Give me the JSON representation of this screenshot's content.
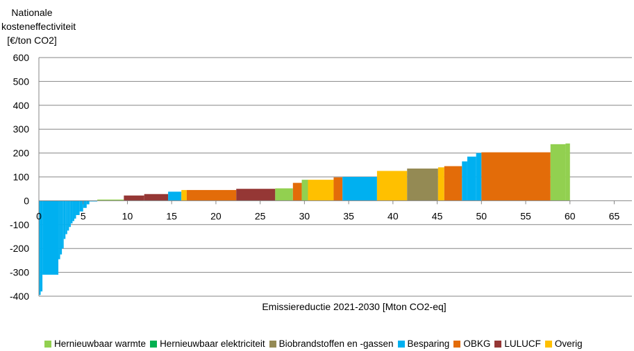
{
  "chart_data": {
    "type": "bar",
    "subtype": "marginal-abatement-cost-curve",
    "ylabel_lines": [
      "Nationale",
      "kosteneffectiviteit",
      "[€/ton CO2]"
    ],
    "xlabel": "Emissiereductie 2021-2030 [Mton CO2-eq]",
    "xlim": [
      0,
      67
    ],
    "ylim": [
      -400,
      600
    ],
    "xticks": [
      0,
      5,
      10,
      15,
      20,
      25,
      30,
      35,
      40,
      45,
      50,
      55,
      60,
      65
    ],
    "yticks": [
      -400,
      -300,
      -200,
      -100,
      0,
      100,
      200,
      300,
      400,
      500,
      600
    ],
    "grid": "horizontal",
    "legend_position": "bottom",
    "colors": {
      "Hernieuwbaar warmte": "#92d050",
      "Hernieuwbaar elektriciteit": "#00b050",
      "Biobrandstoffen en -gassen": "#948a54",
      "Besparing": "#00b0f0",
      "OBKG": "#e36c09",
      "LULUCF": "#953735",
      "Overig": "#ffc000"
    },
    "series": [
      {
        "name": "Hernieuwbaar warmte"
      },
      {
        "name": "Hernieuwbaar elektriciteit"
      },
      {
        "name": "Biobrandstoffen en -gassen"
      },
      {
        "name": "Besparing"
      },
      {
        "name": "OBKG"
      },
      {
        "name": "LULUCF"
      },
      {
        "name": "Overig"
      }
    ],
    "segments": [
      {
        "x0": 0.0,
        "x1": 0.2,
        "value": -395,
        "category": "Besparing"
      },
      {
        "x0": 0.2,
        "x1": 0.4,
        "value": -380,
        "category": "Besparing"
      },
      {
        "x0": 0.4,
        "x1": 2.2,
        "value": -310,
        "category": "Besparing"
      },
      {
        "x0": 2.2,
        "x1": 2.4,
        "value": -245,
        "category": "Besparing"
      },
      {
        "x0": 2.4,
        "x1": 2.6,
        "value": -225,
        "category": "Besparing"
      },
      {
        "x0": 2.6,
        "x1": 2.8,
        "value": -200,
        "category": "Besparing"
      },
      {
        "x0": 2.8,
        "x1": 3.0,
        "value": -160,
        "category": "Besparing"
      },
      {
        "x0": 3.0,
        "x1": 3.2,
        "value": -140,
        "category": "Besparing"
      },
      {
        "x0": 3.2,
        "x1": 3.4,
        "value": -125,
        "category": "Besparing"
      },
      {
        "x0": 3.4,
        "x1": 3.6,
        "value": -110,
        "category": "Besparing"
      },
      {
        "x0": 3.6,
        "x1": 3.8,
        "value": -95,
        "category": "Besparing"
      },
      {
        "x0": 3.8,
        "x1": 4.0,
        "value": -85,
        "category": "Besparing"
      },
      {
        "x0": 4.0,
        "x1": 4.2,
        "value": -75,
        "category": "Besparing"
      },
      {
        "x0": 4.2,
        "x1": 4.6,
        "value": -60,
        "category": "Besparing"
      },
      {
        "x0": 4.6,
        "x1": 5.0,
        "value": -45,
        "category": "Besparing"
      },
      {
        "x0": 5.0,
        "x1": 5.4,
        "value": -30,
        "category": "Besparing"
      },
      {
        "x0": 5.4,
        "x1": 5.7,
        "value": -15,
        "category": "Besparing"
      },
      {
        "x0": 5.7,
        "x1": 6.6,
        "value": -3,
        "category": "Besparing"
      },
      {
        "x0": 6.6,
        "x1": 9.6,
        "value": 5,
        "category": "Hernieuwbaar warmte"
      },
      {
        "x0": 9.6,
        "x1": 11.9,
        "value": 22,
        "category": "LULUCF"
      },
      {
        "x0": 11.9,
        "x1": 14.6,
        "value": 28,
        "category": "LULUCF"
      },
      {
        "x0": 14.6,
        "x1": 16.1,
        "value": 38,
        "category": "Besparing"
      },
      {
        "x0": 16.1,
        "x1": 16.7,
        "value": 45,
        "category": "Overig"
      },
      {
        "x0": 16.7,
        "x1": 22.3,
        "value": 45,
        "category": "OBKG"
      },
      {
        "x0": 22.3,
        "x1": 26.7,
        "value": 50,
        "category": "LULUCF"
      },
      {
        "x0": 26.7,
        "x1": 28.7,
        "value": 52,
        "category": "Hernieuwbaar warmte"
      },
      {
        "x0": 28.7,
        "x1": 29.7,
        "value": 75,
        "category": "OBKG"
      },
      {
        "x0": 29.7,
        "x1": 30.4,
        "value": 88,
        "category": "Hernieuwbaar warmte"
      },
      {
        "x0": 30.4,
        "x1": 33.3,
        "value": 88,
        "category": "Overig"
      },
      {
        "x0": 33.3,
        "x1": 34.3,
        "value": 98,
        "category": "OBKG"
      },
      {
        "x0": 34.3,
        "x1": 38.2,
        "value": 100,
        "category": "Besparing"
      },
      {
        "x0": 38.2,
        "x1": 41.6,
        "value": 125,
        "category": "Overig"
      },
      {
        "x0": 41.6,
        "x1": 45.1,
        "value": 135,
        "category": "Biobrandstoffen en -gassen"
      },
      {
        "x0": 45.1,
        "x1": 45.8,
        "value": 140,
        "category": "Overig"
      },
      {
        "x0": 45.8,
        "x1": 47.8,
        "value": 145,
        "category": "OBKG"
      },
      {
        "x0": 47.8,
        "x1": 48.4,
        "value": 165,
        "category": "Besparing"
      },
      {
        "x0": 48.4,
        "x1": 49.4,
        "value": 185,
        "category": "Besparing"
      },
      {
        "x0": 49.4,
        "x1": 50.0,
        "value": 200,
        "category": "Besparing"
      },
      {
        "x0": 50.0,
        "x1": 57.8,
        "value": 203,
        "category": "OBKG"
      },
      {
        "x0": 57.8,
        "x1": 59.5,
        "value": 237,
        "category": "Hernieuwbaar warmte"
      },
      {
        "x0": 59.5,
        "x1": 60.0,
        "value": 240,
        "category": "Hernieuwbaar warmte"
      }
    ]
  }
}
